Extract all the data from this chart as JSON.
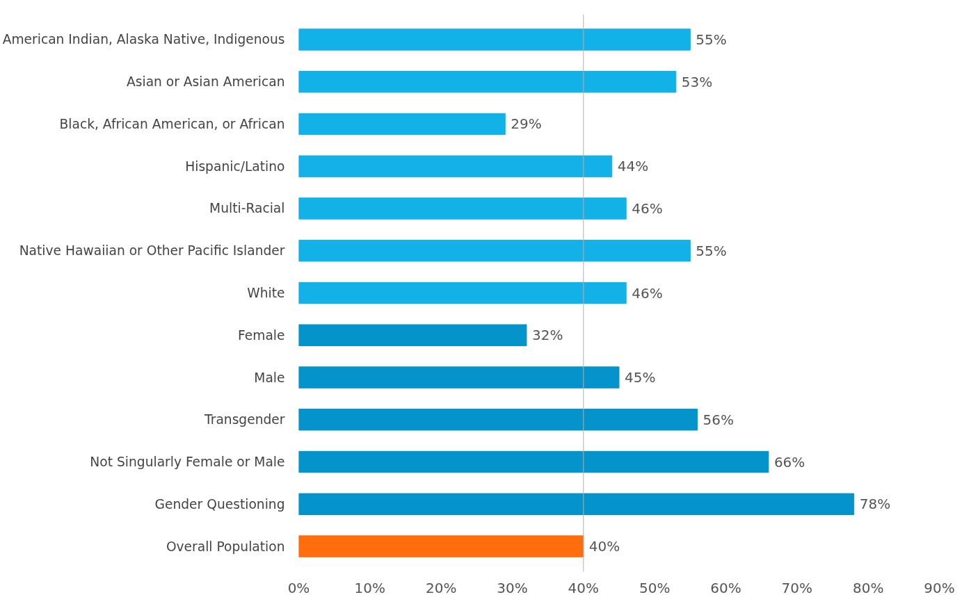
{
  "chart_data": {
    "type": "bar",
    "orientation": "horizontal",
    "categories": [
      "American Indian, Alaska Native, Indigenous",
      "Asian or Asian American",
      "Black, African American, or African",
      "Hispanic/Latino",
      "Multi-Racial",
      "Native Hawaiian or Other Pacific Islander",
      "White",
      "Female",
      "Male",
      "Transgender",
      "Not Singularly Female or Male",
      "Gender Questioning",
      "Overall Population"
    ],
    "values": [
      55,
      53,
      29,
      44,
      46,
      55,
      46,
      32,
      45,
      56,
      66,
      78,
      40
    ],
    "colors": [
      "#12b2e8",
      "#12b2e8",
      "#12b2e8",
      "#12b2e8",
      "#12b2e8",
      "#12b2e8",
      "#12b2e8",
      "#0493cb",
      "#0493cb",
      "#0493cb",
      "#0493cb",
      "#0493cb",
      "#ff6d0c"
    ],
    "value_labels": [
      "55%",
      "53%",
      "29%",
      "44%",
      "46%",
      "55%",
      "46%",
      "32%",
      "45%",
      "56%",
      "66%",
      "78%",
      "40%"
    ],
    "xlim": [
      0,
      90
    ],
    "xticks": [
      {
        "value": 0,
        "label": "0%"
      },
      {
        "value": 10,
        "label": "10%"
      },
      {
        "value": 20,
        "label": "20%"
      },
      {
        "value": 30,
        "label": "30%"
      },
      {
        "value": 40,
        "label": "40%"
      },
      {
        "value": 50,
        "label": "50%"
      },
      {
        "value": 60,
        "label": "60%"
      },
      {
        "value": 70,
        "label": "70%"
      },
      {
        "value": 80,
        "label": "80%"
      },
      {
        "value": 90,
        "label": "90%"
      }
    ],
    "ref_lines": [
      {
        "axis": "x",
        "value": 40,
        "color": "#b0b0b0"
      }
    ],
    "grid": false
  }
}
